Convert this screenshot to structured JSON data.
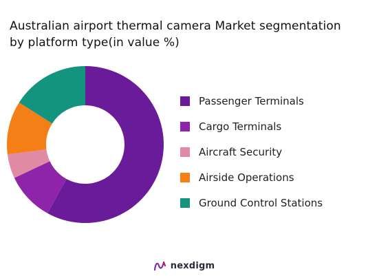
{
  "chart_data": {
    "type": "pie",
    "variant": "donut",
    "title": [
      "Australian airport thermal camera Market segmentation",
      "by platform type(in value %)"
    ],
    "categories": [
      "Passenger Terminals",
      "Cargo Terminals",
      "Aircraft Security",
      "Airside Operations",
      "Ground Control Stations"
    ],
    "values": [
      58,
      10,
      5,
      11,
      16
    ],
    "colors": [
      "#6a1b9a",
      "#8e24aa",
      "#e08aa4",
      "#f57f17",
      "#12947f"
    ],
    "legend_position": "right"
  },
  "brand": {
    "name": "nexdigm",
    "icon": "nexdigm-logo-icon"
  }
}
